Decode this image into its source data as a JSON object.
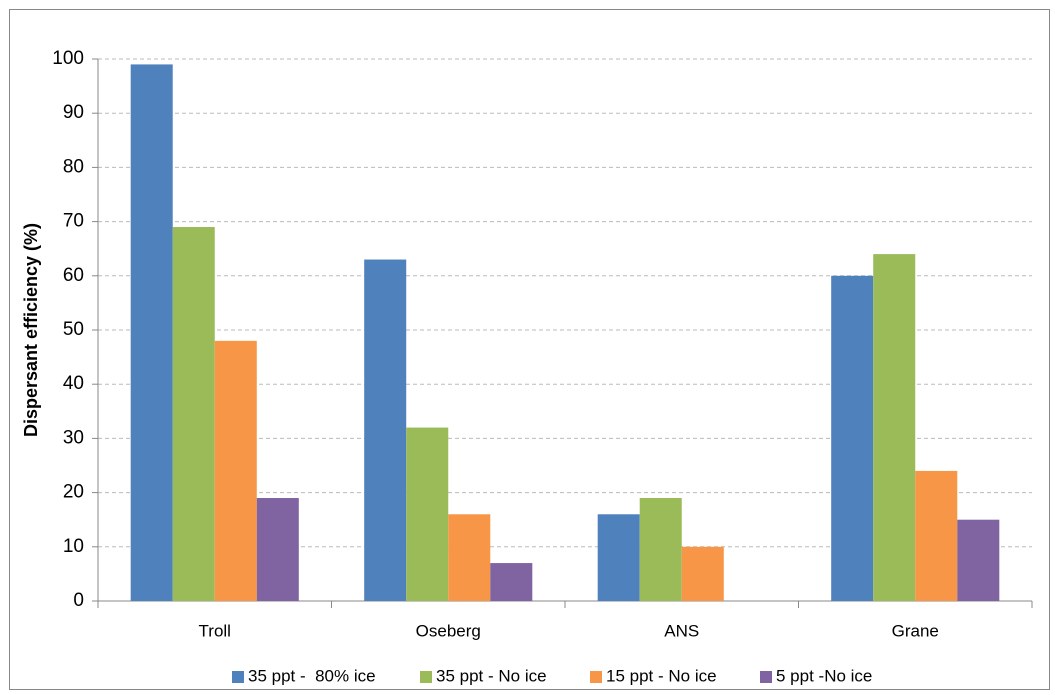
{
  "chart_data": {
    "type": "bar",
    "y_label": "Dispersant efficiency (%)",
    "categories": [
      "Troll",
      "Oseberg",
      "ANS",
      "Grane"
    ],
    "series": [
      {
        "name": "35 ppt -  80% ice",
        "color": "#4f81bd",
        "values": [
          99,
          63,
          16,
          60
        ]
      },
      {
        "name": "35 ppt - No ice",
        "color": "#9bbb59",
        "values": [
          69,
          32,
          19,
          64
        ]
      },
      {
        "name": "15 ppt - No ice",
        "color": "#f79646",
        "values": [
          48,
          16,
          10,
          24
        ]
      },
      {
        "name": "5 ppt -No ice",
        "color": "#8064a2",
        "values": [
          19,
          7,
          null,
          15
        ]
      }
    ],
    "ylim": [
      0,
      100
    ],
    "yticks": [
      0,
      10,
      20,
      30,
      40,
      50,
      60,
      70,
      80,
      90,
      100
    ],
    "grid": true,
    "legend": "bottom"
  }
}
